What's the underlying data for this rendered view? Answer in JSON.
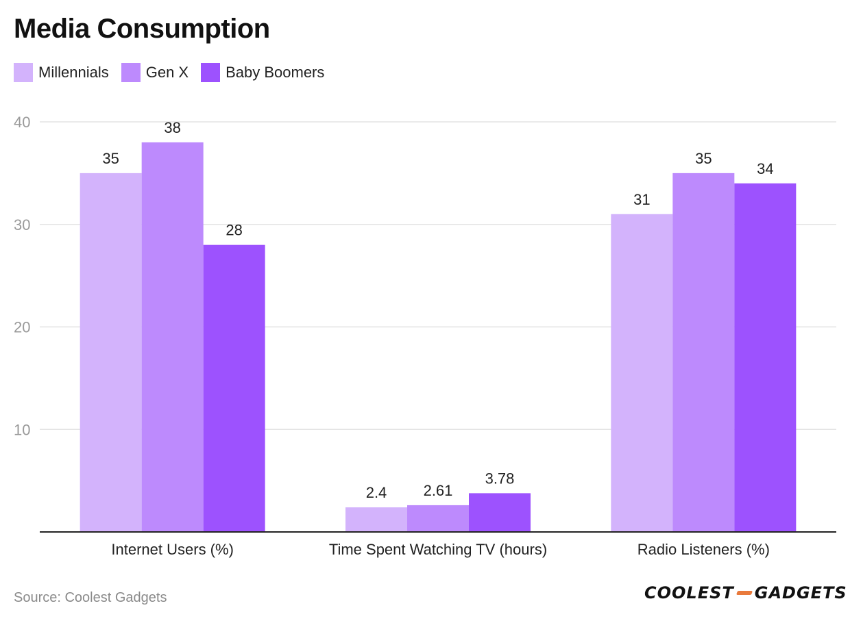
{
  "title": "Media Consumption",
  "source": "Source: Coolest Gadgets",
  "logo": {
    "left": "COOLEST",
    "right": "GADGETS",
    "accent": "#e97a3c"
  },
  "chart_data": {
    "type": "bar",
    "categories": [
      "Internet Users (%)",
      "Time Spent Watching TV (hours)",
      "Radio Listeners (%)"
    ],
    "series": [
      {
        "name": "Millennials",
        "color": "#d3b3fc",
        "values": [
          35,
          2.4,
          31
        ],
        "labels": [
          "35",
          "2.4",
          "31"
        ]
      },
      {
        "name": "Gen X",
        "color": "#bd8afd",
        "values": [
          38,
          2.61,
          35
        ],
        "labels": [
          "38",
          "2.61",
          "35"
        ]
      },
      {
        "name": "Baby Boomers",
        "color": "#9d52fe",
        "values": [
          28,
          3.78,
          34
        ],
        "labels": [
          "28",
          "3.78",
          "34"
        ]
      }
    ],
    "yticks": [
      10,
      20,
      30,
      40
    ],
    "ylim": [
      0,
      40
    ],
    "grid": true,
    "legend": "top-left"
  }
}
